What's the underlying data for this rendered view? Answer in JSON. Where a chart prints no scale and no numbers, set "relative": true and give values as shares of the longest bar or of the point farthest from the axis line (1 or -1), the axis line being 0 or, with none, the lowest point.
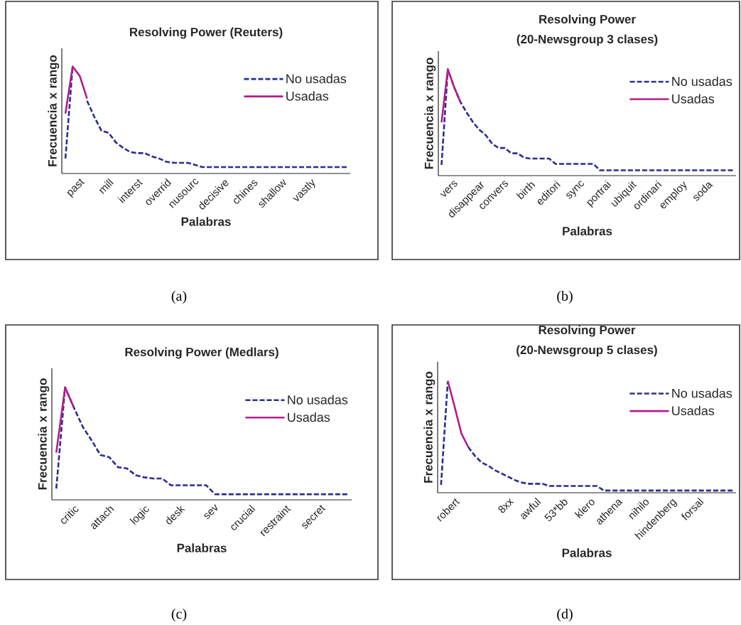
{
  "chart_data": [
    {
      "type": "line",
      "title": "Resolving Power (Reuters)",
      "xlabel": "Palabras",
      "ylabel": "Frecuencia x rango",
      "relative": true,
      "legend": "top right",
      "categories": [
        null,
        null,
        "past",
        null,
        null,
        null,
        "mill",
        null,
        null,
        null,
        "interst",
        null,
        null,
        null,
        "overrid",
        null,
        null,
        null,
        "nusourc",
        null,
        null,
        null,
        "decisive",
        null,
        null,
        null,
        "chines",
        null,
        null,
        null,
        "shallow",
        null,
        null,
        null,
        "vastly",
        null,
        null,
        null,
        null,
        null
      ],
      "series": [
        {
          "name": "No usadas",
          "color": "#2b2f8f",
          "line_style": "dashed",
          "values": [
            0.14,
            1.0,
            null,
            0.68,
            0.53,
            0.4,
            0.38,
            0.29,
            0.24,
            0.2,
            0.19,
            0.19,
            0.16,
            0.14,
            0.11,
            0.1,
            0.1,
            0.1,
            0.08,
            0.06,
            0.06,
            0.06,
            0.06,
            0.06,
            0.06,
            0.06,
            0.06,
            0.06,
            0.06,
            0.06,
            0.06,
            0.06,
            0.06,
            0.06,
            0.06,
            0.06,
            0.06,
            0.06,
            0.06,
            0.06
          ]
        },
        {
          "name": "Usadas",
          "color": "#b01e8e",
          "line_style": "solid",
          "values": [
            0.56,
            1.0,
            0.91,
            0.7,
            null,
            null,
            null,
            null,
            null,
            null,
            null,
            null,
            null,
            null,
            null,
            null,
            null,
            null,
            null,
            null,
            null,
            null,
            null,
            null,
            null,
            null,
            null,
            null,
            null,
            null,
            null,
            null,
            null,
            null,
            null,
            null,
            null,
            null,
            null,
            null
          ]
        }
      ],
      "annotations": [
        "(a)"
      ]
    },
    {
      "type": "line",
      "title": "Resolving Power",
      "subtitle": "(20-Newsgroup 3 clases)",
      "xlabel": "Palabras",
      "ylabel": "Frecuencia x rango",
      "relative": true,
      "legend": "top right",
      "categories": [
        null,
        null,
        "vers",
        null,
        null,
        null,
        "disappear",
        null,
        null,
        null,
        "convers",
        null,
        null,
        null,
        "birth",
        null,
        null,
        null,
        "editori",
        null,
        null,
        null,
        "sync",
        null,
        null,
        null,
        "portrai",
        null,
        null,
        null,
        "ubiquit",
        null,
        null,
        null,
        "ordinari",
        null,
        null,
        null,
        "employ",
        null,
        null,
        null,
        "soda",
        null,
        null,
        null,
        null
      ],
      "series": [
        {
          "name": "No usadas",
          "color": "#2b2f8f",
          "line_style": "dashed",
          "values": [
            0.1,
            1.0,
            0.83,
            0.69,
            0.59,
            0.5,
            0.43,
            0.38,
            0.3,
            0.26,
            0.26,
            0.21,
            0.21,
            0.17,
            0.16,
            0.16,
            0.16,
            0.16,
            0.11,
            0.11,
            0.11,
            0.11,
            0.11,
            0.11,
            0.11,
            0.05,
            0.05,
            0.05,
            0.05,
            0.05,
            0.05,
            0.05,
            0.05,
            0.05,
            0.05,
            0.05,
            0.05,
            0.05,
            0.05,
            0.05,
            0.05,
            0.05,
            0.05,
            0.05,
            0.05,
            0.05,
            0.05
          ]
        },
        {
          "name": "Usadas",
          "color": "#b01e8e",
          "line_style": "solid",
          "values": [
            0.5,
            1.0,
            0.83,
            0.69,
            null,
            null,
            null,
            null,
            null,
            null,
            null,
            null,
            null,
            null,
            null,
            null,
            null,
            null,
            null,
            null,
            null,
            null,
            null,
            null,
            null,
            null,
            null,
            null,
            null,
            null,
            null,
            null,
            null,
            null,
            null,
            null,
            null,
            null,
            null,
            null,
            null,
            null,
            null,
            null,
            null,
            null,
            null
          ]
        }
      ],
      "annotations": [
        "(b)"
      ]
    },
    {
      "type": "line",
      "title": "Resolving Power (Medlars)",
      "xlabel": "Palabras",
      "ylabel": "Frecuencia x rango",
      "relative": true,
      "legend": "top right",
      "categories": [
        null,
        null,
        "critic",
        null,
        null,
        null,
        "attach",
        null,
        null,
        null,
        "logic",
        null,
        null,
        null,
        "desk",
        null,
        null,
        null,
        "sev",
        null,
        null,
        null,
        "crucial",
        null,
        null,
        null,
        "restraint",
        null,
        null,
        null,
        "secret",
        null,
        null,
        null
      ],
      "series": [
        {
          "name": "No usadas",
          "color": "#2b2f8f",
          "line_style": "dashed",
          "values": [
            0.1,
            1.0,
            0.82,
            0.65,
            0.53,
            0.4,
            0.38,
            0.29,
            0.28,
            0.22,
            0.2,
            0.19,
            0.19,
            0.13,
            0.13,
            0.13,
            0.13,
            0.13,
            0.05,
            0.05,
            0.05,
            0.05,
            0.05,
            0.05,
            0.05,
            0.05,
            0.05,
            0.05,
            0.05,
            0.05,
            0.05,
            0.05,
            0.05,
            0.05
          ]
        },
        {
          "name": "Usadas",
          "color": "#b01e8e",
          "line_style": "solid",
          "values": [
            0.42,
            1.0,
            0.82,
            null,
            null,
            null,
            null,
            null,
            null,
            null,
            null,
            null,
            null,
            null,
            null,
            null,
            null,
            null,
            null,
            null,
            null,
            null,
            null,
            null,
            null,
            null,
            null,
            null,
            null,
            null,
            null,
            null,
            null,
            null
          ]
        }
      ],
      "annotations": [
        "(c)"
      ]
    },
    {
      "type": "line",
      "title": "Resolving Power",
      "subtitle": "(20-Newsgroup 5 clases)",
      "xlabel": "Palabras",
      "ylabel": "Frecuencia x rango",
      "relative": true,
      "legend": "top right",
      "categories": [
        null,
        null,
        "robert",
        null,
        null,
        null,
        null,
        null,
        null,
        null,
        "8xx",
        null,
        null,
        null,
        "awful",
        null,
        null,
        null,
        "53*bb",
        null,
        null,
        null,
        "klero",
        null,
        null,
        null,
        "athena",
        null,
        null,
        null,
        "nihilo",
        null,
        null,
        null,
        "hindenberg",
        null,
        null,
        null,
        "forsal",
        null,
        null,
        null,
        null,
        null
      ],
      "series": [
        {
          "name": "No usadas",
          "color": "#2b2f8f",
          "line_style": "dashed",
          "values": [
            0.07,
            1.0,
            null,
            null,
            0.41,
            0.33,
            0.27,
            0.24,
            0.2,
            0.17,
            0.14,
            0.11,
            0.09,
            0.08,
            0.08,
            0.08,
            0.06,
            0.06,
            0.06,
            0.06,
            0.06,
            0.06,
            0.06,
            0.06,
            0.02,
            0.02,
            0.02,
            0.02,
            0.02,
            0.02,
            0.02,
            0.02,
            0.02,
            0.02,
            0.02,
            0.02,
            0.02,
            0.02,
            0.02,
            0.02,
            0.02,
            0.02,
            0.02,
            0.02
          ]
        },
        {
          "name": "Usadas",
          "color": "#b01e8e",
          "line_style": "solid",
          "values": [
            null,
            1.0,
            0.77,
            0.53,
            0.41,
            null,
            null,
            null,
            null,
            null,
            null,
            null,
            null,
            null,
            null,
            null,
            null,
            null,
            null,
            null,
            null,
            null,
            null,
            null,
            null,
            null,
            null,
            null,
            null,
            null,
            null,
            null,
            null,
            null,
            null,
            null,
            null,
            null,
            null,
            null,
            null,
            null,
            null,
            null
          ]
        }
      ],
      "annotations": [
        "(d)"
      ]
    }
  ]
}
